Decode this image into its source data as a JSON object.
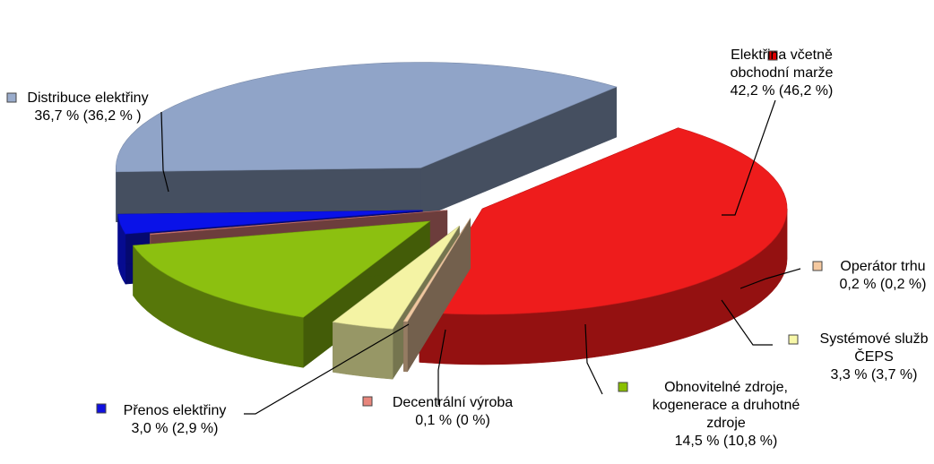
{
  "chart_data": {
    "type": "pie",
    "style": "3d-exploded",
    "legend": "callout-labels",
    "series": [
      {
        "slices": [
          {
            "name_lines": [
              "Elektřina včetně",
              "obchodní marže"
            ],
            "value": 42.2,
            "value_text": "42,2 % (46,2 %)",
            "comparison_value": 46.2,
            "color": "#ee1c1c",
            "marker": "#e00000"
          },
          {
            "name_lines": [
              "Operátor trhu"
            ],
            "value": 0.2,
            "value_text": "0,2 % (0,2 %)",
            "comparison_value": 0.2,
            "color": "#f0c8a0",
            "marker": "#f5c9a0"
          },
          {
            "name_lines": [
              "Systémové služb",
              "ČEPS"
            ],
            "value": 3.3,
            "value_text": "3,3 % (3,7 %)",
            "comparison_value": 3.7,
            "color": "#f4f3a4",
            "marker": "#f7f7a8"
          },
          {
            "name_lines": [
              "Obnovitelné zdroje,",
              "kogenerace a druhotné",
              "zdroje"
            ],
            "value": 14.5,
            "value_text": "14,5 % (10,8 %)",
            "comparison_value": 10.8,
            "color": "#8cc010",
            "marker": "#8ac000"
          },
          {
            "name_lines": [
              "Decentrální výroba"
            ],
            "value": 0.1,
            "value_text": "0,1 % (0 %)",
            "comparison_value": 0,
            "color": "#e0807c",
            "marker": "#e8867c"
          },
          {
            "name_lines": [
              "Přenos elektřiny"
            ],
            "value": 3.0,
            "value_text": "3,0 % (2,9 %)",
            "comparison_value": 2.9,
            "color": "#0a12e8",
            "marker": "#1010e0"
          },
          {
            "name_lines": [
              "Distribuce elektřiny"
            ],
            "value": 36.7,
            "value_text": "36,7 % (36,2 % )",
            "comparison_value": 36.2,
            "color": "#90a4c8",
            "marker": "#9aaccc"
          }
        ]
      }
    ]
  }
}
